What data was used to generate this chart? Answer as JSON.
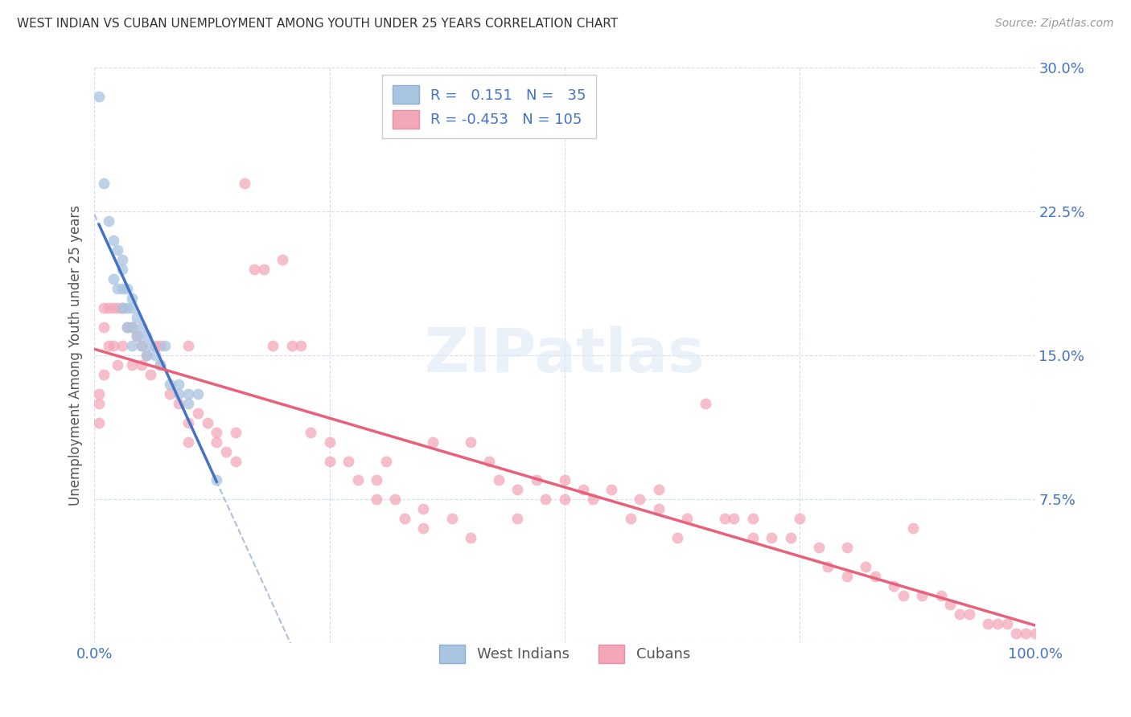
{
  "title": "WEST INDIAN VS CUBAN UNEMPLOYMENT AMONG YOUTH UNDER 25 YEARS CORRELATION CHART",
  "source": "Source: ZipAtlas.com",
  "ylabel": "Unemployment Among Youth under 25 years",
  "xlim": [
    0,
    1.0
  ],
  "ylim": [
    0,
    0.3
  ],
  "west_indian_color": "#a8c4e0",
  "west_indian_edge": "#7aaace",
  "cuban_color": "#f4a7b9",
  "cuban_edge": "#e87899",
  "west_indian_line_color": "#4472c4",
  "west_indian_dash_color": "#b0c0d8",
  "cuban_line_color": "#e8607a",
  "watermark": "ZIPatlas",
  "wi_R": 0.151,
  "wi_N": 35,
  "cu_R": -0.453,
  "cu_N": 105,
  "west_indians_x": [
    0.005,
    0.01,
    0.015,
    0.02,
    0.02,
    0.025,
    0.025,
    0.03,
    0.03,
    0.03,
    0.03,
    0.035,
    0.035,
    0.035,
    0.04,
    0.04,
    0.04,
    0.04,
    0.045,
    0.045,
    0.05,
    0.05,
    0.055,
    0.055,
    0.06,
    0.065,
    0.07,
    0.075,
    0.08,
    0.09,
    0.09,
    0.1,
    0.1,
    0.11,
    0.13
  ],
  "west_indians_y": [
    0.285,
    0.24,
    0.22,
    0.21,
    0.19,
    0.205,
    0.185,
    0.2,
    0.195,
    0.185,
    0.175,
    0.185,
    0.175,
    0.165,
    0.18,
    0.175,
    0.165,
    0.155,
    0.17,
    0.16,
    0.165,
    0.155,
    0.16,
    0.15,
    0.155,
    0.15,
    0.145,
    0.155,
    0.135,
    0.135,
    0.13,
    0.13,
    0.125,
    0.13,
    0.085
  ],
  "cubans_x": [
    0.005,
    0.005,
    0.005,
    0.01,
    0.01,
    0.01,
    0.015,
    0.015,
    0.02,
    0.02,
    0.025,
    0.025,
    0.03,
    0.03,
    0.035,
    0.04,
    0.04,
    0.045,
    0.05,
    0.05,
    0.055,
    0.06,
    0.065,
    0.07,
    0.07,
    0.08,
    0.09,
    0.1,
    0.1,
    0.11,
    0.12,
    0.13,
    0.14,
    0.15,
    0.16,
    0.17,
    0.18,
    0.19,
    0.2,
    0.21,
    0.22,
    0.23,
    0.25,
    0.25,
    0.27,
    0.28,
    0.3,
    0.31,
    0.32,
    0.33,
    0.35,
    0.36,
    0.38,
    0.4,
    0.42,
    0.43,
    0.45,
    0.47,
    0.48,
    0.5,
    0.5,
    0.52,
    0.53,
    0.55,
    0.57,
    0.58,
    0.6,
    0.62,
    0.63,
    0.65,
    0.67,
    0.68,
    0.7,
    0.72,
    0.74,
    0.75,
    0.77,
    0.78,
    0.8,
    0.82,
    0.83,
    0.85,
    0.86,
    0.87,
    0.88,
    0.9,
    0.91,
    0.92,
    0.93,
    0.95,
    0.96,
    0.97,
    0.98,
    0.99,
    1.0,
    0.1,
    0.13,
    0.15,
    0.3,
    0.35,
    0.4,
    0.45,
    0.6,
    0.7,
    0.8
  ],
  "cubans_y": [
    0.13,
    0.125,
    0.115,
    0.175,
    0.165,
    0.14,
    0.175,
    0.155,
    0.175,
    0.155,
    0.175,
    0.145,
    0.175,
    0.155,
    0.165,
    0.165,
    0.145,
    0.16,
    0.155,
    0.145,
    0.15,
    0.14,
    0.155,
    0.155,
    0.145,
    0.13,
    0.125,
    0.115,
    0.105,
    0.12,
    0.115,
    0.11,
    0.1,
    0.11,
    0.24,
    0.195,
    0.195,
    0.155,
    0.2,
    0.155,
    0.155,
    0.11,
    0.105,
    0.095,
    0.095,
    0.085,
    0.085,
    0.095,
    0.075,
    0.065,
    0.07,
    0.105,
    0.065,
    0.105,
    0.095,
    0.085,
    0.08,
    0.085,
    0.075,
    0.085,
    0.075,
    0.08,
    0.075,
    0.08,
    0.065,
    0.075,
    0.08,
    0.055,
    0.065,
    0.125,
    0.065,
    0.065,
    0.065,
    0.055,
    0.055,
    0.065,
    0.05,
    0.04,
    0.05,
    0.04,
    0.035,
    0.03,
    0.025,
    0.06,
    0.025,
    0.025,
    0.02,
    0.015,
    0.015,
    0.01,
    0.01,
    0.01,
    0.005,
    0.005,
    0.005,
    0.155,
    0.105,
    0.095,
    0.075,
    0.06,
    0.055,
    0.065,
    0.07,
    0.055,
    0.035
  ]
}
